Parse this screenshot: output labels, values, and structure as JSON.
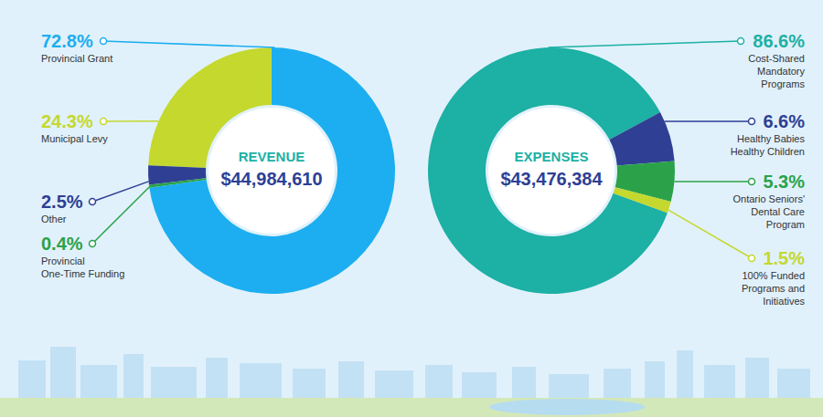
{
  "chart_data": [
    {
      "type": "pie",
      "title": "REVENUE",
      "subtitle": "$44,984,610",
      "categories": [
        "Provincial Grant",
        "Municipal Levy",
        "Other",
        "Provincial One-Time Funding"
      ],
      "values": [
        72.8,
        24.3,
        2.5,
        0.4
      ],
      "value_labels": [
        "72.8%",
        "24.3%",
        "2.5%",
        "0.4%"
      ],
      "colors": [
        "#1caef0",
        "#c4d82e",
        "#2e3f94",
        "#2ba24a"
      ],
      "data_labels": true
    },
    {
      "type": "pie",
      "title": "EXPENSES",
      "subtitle": "$43,476,384",
      "categories": [
        "Cost-Shared Mandatory Programs",
        "Healthy Babies Healthy Children",
        "Ontario Seniors' Dental Care Program",
        "100% Funded Programs and Initiatives"
      ],
      "values": [
        86.6,
        6.6,
        5.3,
        1.5
      ],
      "value_labels": [
        "86.6%",
        "6.6%",
        "5.3%",
        "1.5%"
      ],
      "colors": [
        "#1db0a4",
        "#2e3f94",
        "#2ba24a",
        "#c4d82e"
      ],
      "data_labels": true
    }
  ]
}
